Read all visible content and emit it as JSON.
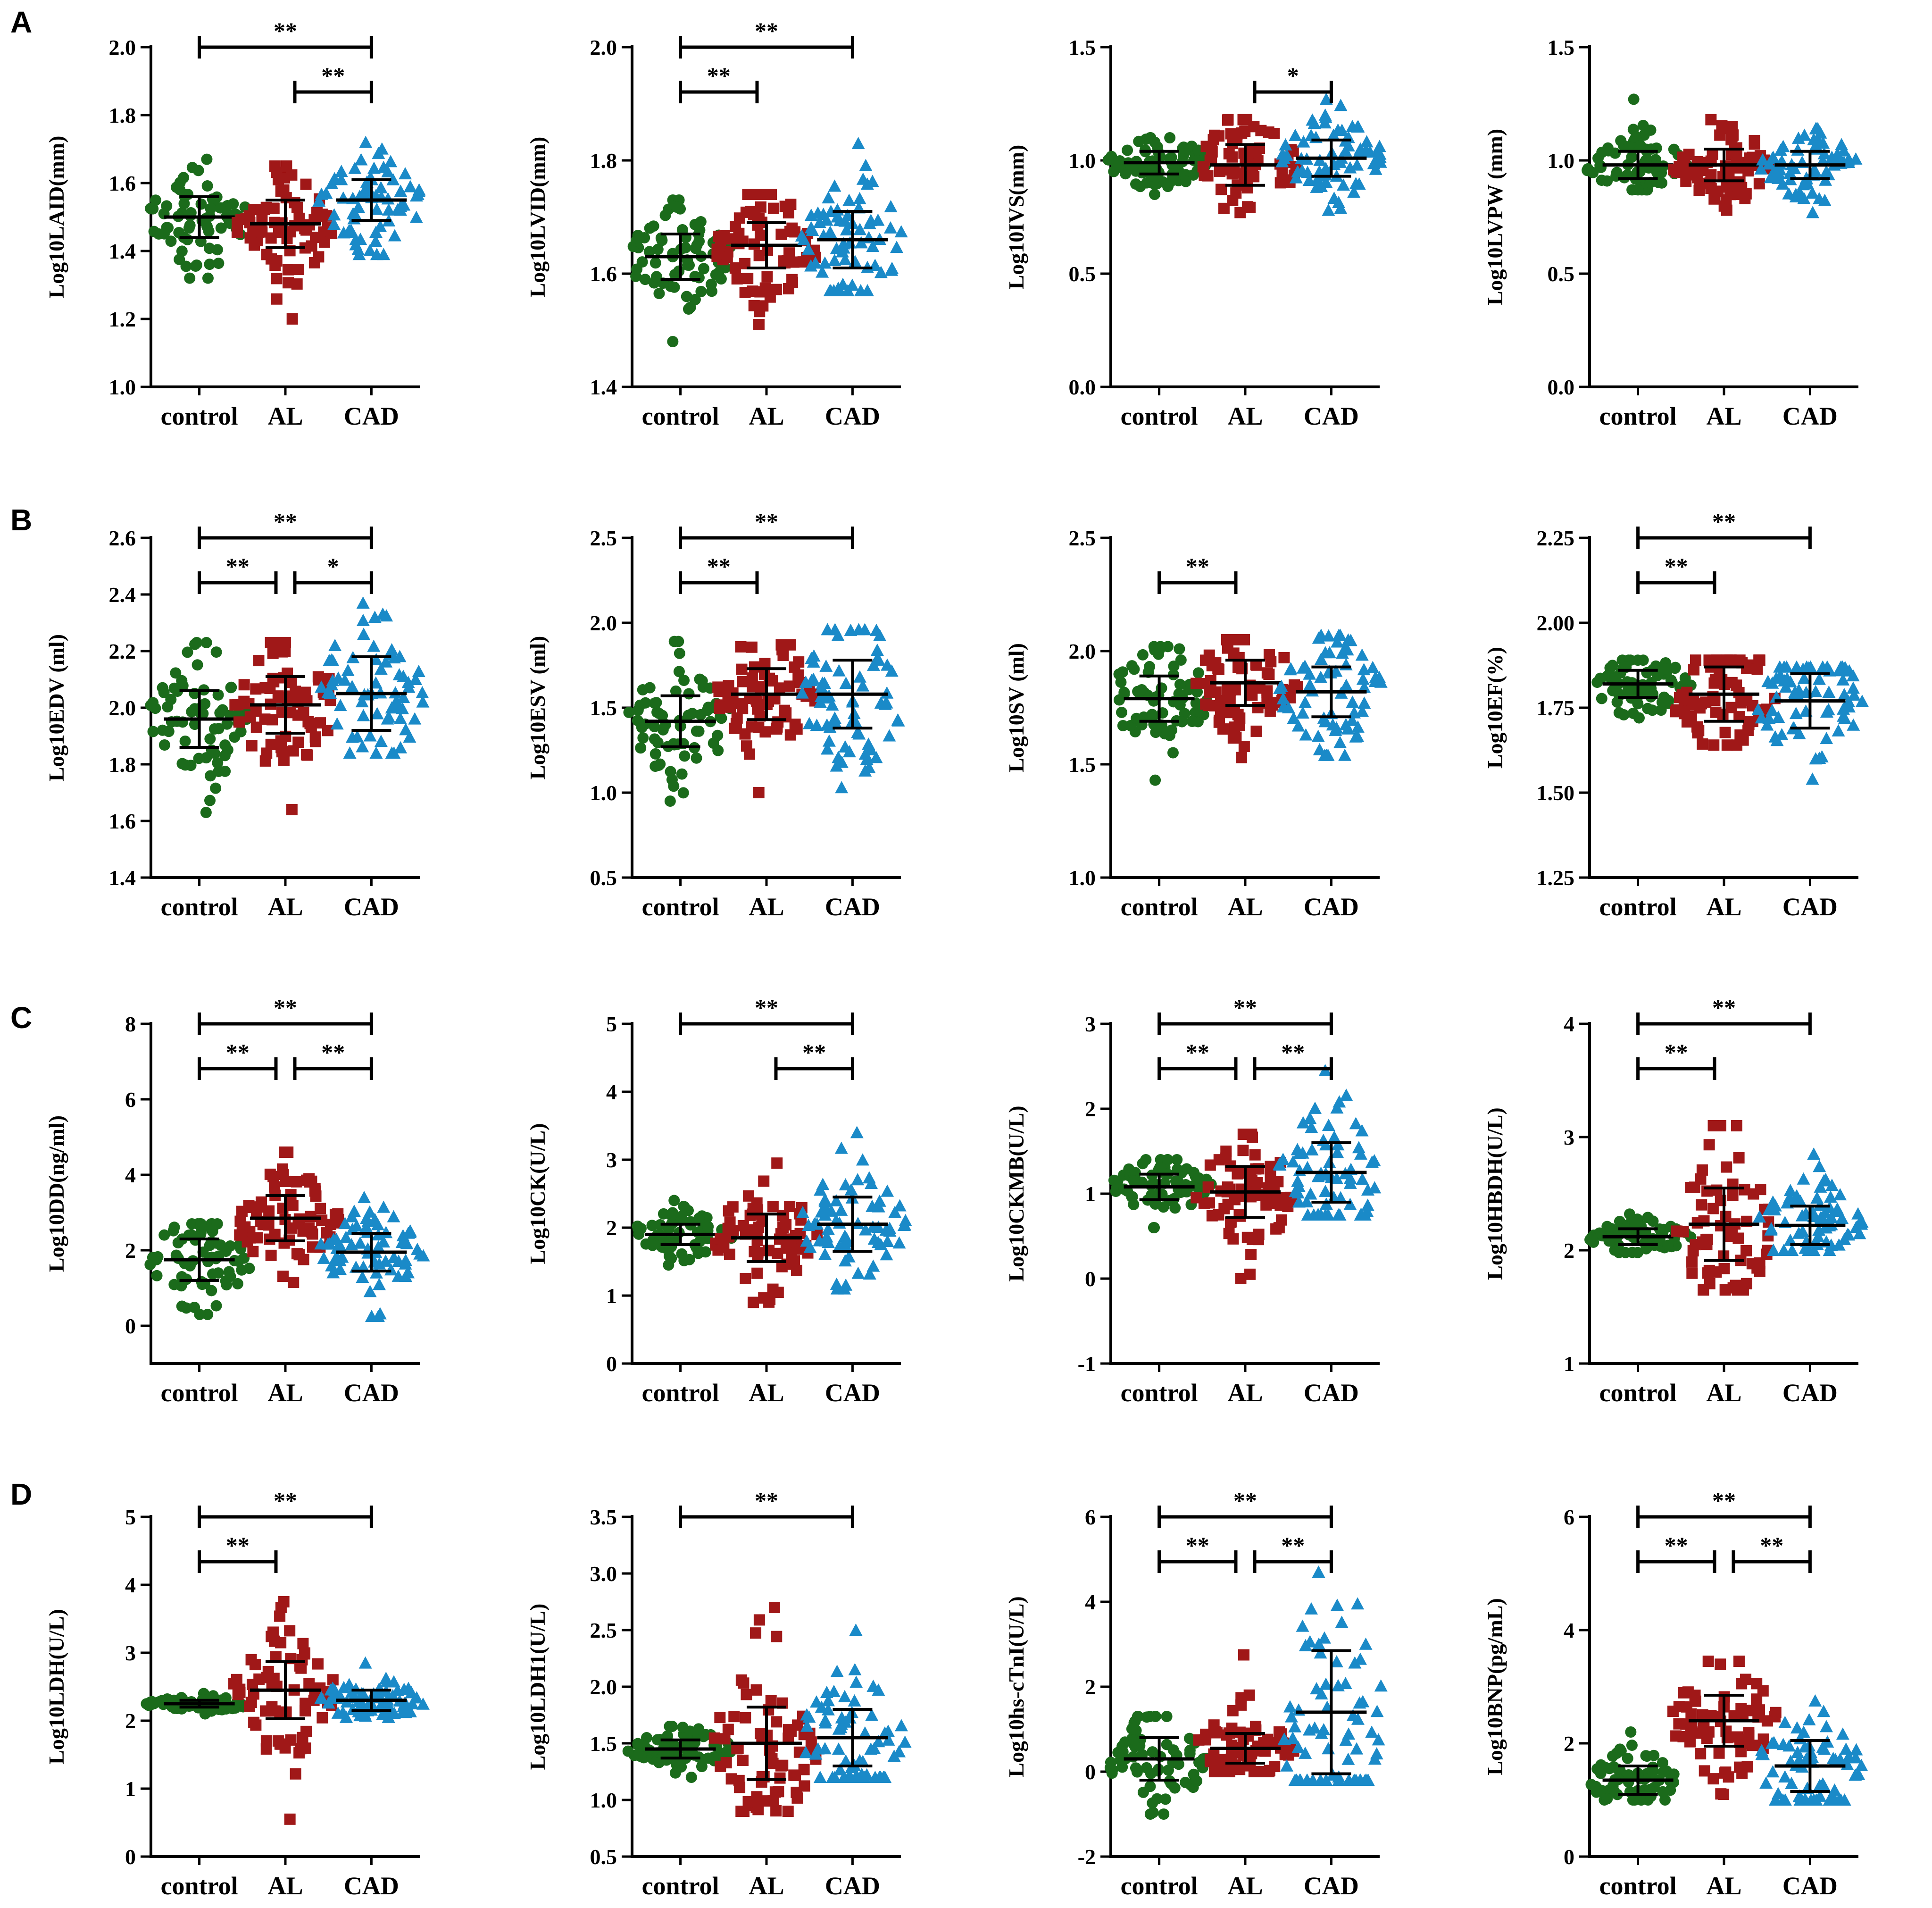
{
  "panels": [
    {
      "id": "A",
      "label": "A"
    },
    {
      "id": "B",
      "label": "B"
    },
    {
      "id": "C",
      "label": "C"
    },
    {
      "id": "D",
      "label": "D"
    }
  ],
  "colors": {
    "control": "#1b6b1b",
    "AL": "#a01818",
    "CAD": "#1a8ac8"
  },
  "groups": [
    "control",
    "AL",
    "CAD"
  ],
  "chart_data": [
    {
      "type": "scatter",
      "panel": "A",
      "ylabel": "Log10LAID(mm)",
      "ylim": [
        1.0,
        2.0
      ],
      "yticks": [
        1.0,
        1.2,
        1.4,
        1.6,
        1.8,
        2.0
      ],
      "tick_format": 1,
      "categories": [
        "control",
        "AL",
        "CAD"
      ],
      "series": [
        {
          "name": "control",
          "mean": 1.5,
          "sd": 0.06,
          "min": 1.32,
          "max": 1.67
        },
        {
          "name": "AL",
          "mean": 1.48,
          "sd": 0.07,
          "min": 1.2,
          "max": 1.65
        },
        {
          "name": "CAD",
          "mean": 1.55,
          "sd": 0.06,
          "min": 1.39,
          "max": 1.72
        }
      ],
      "significance": [
        {
          "from": 0,
          "to": 2,
          "label": "**"
        },
        {
          "from": 1,
          "to": 2,
          "label": "**"
        }
      ]
    },
    {
      "type": "scatter",
      "panel": "A",
      "ylabel": "Log10LVID(mm)",
      "ylim": [
        1.4,
        2.0
      ],
      "yticks": [
        1.4,
        1.6,
        1.8,
        2.0
      ],
      "tick_format": 1,
      "categories": [
        "control",
        "AL",
        "CAD"
      ],
      "series": [
        {
          "name": "control",
          "mean": 1.63,
          "sd": 0.04,
          "min": 1.48,
          "max": 1.73
        },
        {
          "name": "AL",
          "mean": 1.65,
          "sd": 0.04,
          "min": 1.51,
          "max": 1.74
        },
        {
          "name": "CAD",
          "mean": 1.66,
          "sd": 0.05,
          "min": 1.57,
          "max": 1.83
        }
      ],
      "significance": [
        {
          "from": 0,
          "to": 2,
          "label": "**"
        },
        {
          "from": 0,
          "to": 1,
          "label": "**"
        }
      ]
    },
    {
      "type": "scatter",
      "panel": "A",
      "ylabel": "Log10IVS(mm)",
      "ylim": [
        0.0,
        1.5
      ],
      "yticks": [
        0.0,
        0.5,
        1.0,
        1.5
      ],
      "tick_format": 1,
      "categories": [
        "control",
        "AL",
        "CAD"
      ],
      "series": [
        {
          "name": "control",
          "mean": 0.99,
          "sd": 0.05,
          "min": 0.85,
          "max": 1.1
        },
        {
          "name": "AL",
          "mean": 0.98,
          "sd": 0.09,
          "min": 0.77,
          "max": 1.18
        },
        {
          "name": "CAD",
          "mean": 1.01,
          "sd": 0.08,
          "min": 0.78,
          "max": 1.27
        }
      ],
      "significance": [
        {
          "from": 1,
          "to": 2,
          "label": "*"
        }
      ]
    },
    {
      "type": "scatter",
      "panel": "A",
      "ylabel": "Log10LVPW (mm)",
      "ylim": [
        0.0,
        1.5
      ],
      "yticks": [
        0.0,
        0.5,
        1.0,
        1.5
      ],
      "tick_format": 1,
      "categories": [
        "control",
        "AL",
        "CAD"
      ],
      "series": [
        {
          "name": "control",
          "mean": 0.98,
          "sd": 0.06,
          "min": 0.87,
          "max": 1.27
        },
        {
          "name": "AL",
          "mean": 0.98,
          "sd": 0.07,
          "min": 0.78,
          "max": 1.18
        },
        {
          "name": "CAD",
          "mean": 0.98,
          "sd": 0.06,
          "min": 0.77,
          "max": 1.14
        }
      ],
      "significance": []
    },
    {
      "type": "scatter",
      "panel": "B",
      "ylabel": "Log10EDV (ml)",
      "ylim": [
        1.4,
        2.6
      ],
      "yticks": [
        1.4,
        1.6,
        1.8,
        2.0,
        2.2,
        2.4,
        2.6
      ],
      "tick_format": 1,
      "categories": [
        "control",
        "AL",
        "CAD"
      ],
      "series": [
        {
          "name": "control",
          "mean": 1.96,
          "sd": 0.1,
          "min": 1.63,
          "max": 2.23
        },
        {
          "name": "AL",
          "mean": 2.01,
          "sd": 0.1,
          "min": 1.64,
          "max": 2.23
        },
        {
          "name": "CAD",
          "mean": 2.05,
          "sd": 0.13,
          "min": 1.84,
          "max": 2.37
        }
      ],
      "significance": [
        {
          "from": 0,
          "to": 2,
          "label": "**"
        },
        {
          "from": 0,
          "to": 1,
          "label": "**"
        },
        {
          "from": 1,
          "to": 2,
          "label": "*"
        }
      ]
    },
    {
      "type": "scatter",
      "panel": "B",
      "ylabel": "Log10ESV (ml)",
      "ylim": [
        0.5,
        2.5
      ],
      "yticks": [
        0.5,
        1.0,
        1.5,
        2.0,
        2.5
      ],
      "tick_format": 1,
      "categories": [
        "control",
        "AL",
        "CAD"
      ],
      "series": [
        {
          "name": "control",
          "mean": 1.42,
          "sd": 0.15,
          "min": 0.95,
          "max": 1.89
        },
        {
          "name": "AL",
          "mean": 1.58,
          "sd": 0.15,
          "min": 1.0,
          "max": 1.87
        },
        {
          "name": "CAD",
          "mean": 1.58,
          "sd": 0.2,
          "min": 1.03,
          "max": 1.96
        }
      ],
      "significance": [
        {
          "from": 0,
          "to": 2,
          "label": "**"
        },
        {
          "from": 0,
          "to": 1,
          "label": "**"
        }
      ]
    },
    {
      "type": "scatter",
      "panel": "B",
      "ylabel": "Log10SV (ml)",
      "ylim": [
        1.0,
        2.5
      ],
      "yticks": [
        1.0,
        1.5,
        2.0,
        2.5
      ],
      "tick_format": 1,
      "categories": [
        "control",
        "AL",
        "CAD"
      ],
      "series": [
        {
          "name": "control",
          "mean": 1.79,
          "sd": 0.1,
          "min": 1.43,
          "max": 2.02
        },
        {
          "name": "AL",
          "mean": 1.86,
          "sd": 0.1,
          "min": 1.53,
          "max": 2.05
        },
        {
          "name": "CAD",
          "mean": 1.82,
          "sd": 0.11,
          "min": 1.54,
          "max": 2.07
        }
      ],
      "significance": [
        {
          "from": 0,
          "to": 1,
          "label": "**"
        }
      ]
    },
    {
      "type": "scatter",
      "panel": "B",
      "ylabel": "Log10EF(%)",
      "ylim": [
        1.25,
        2.25
      ],
      "yticks": [
        1.25,
        1.5,
        1.75,
        2.0,
        2.25
      ],
      "tick_format": 2,
      "categories": [
        "control",
        "AL",
        "CAD"
      ],
      "series": [
        {
          "name": "control",
          "mean": 1.82,
          "sd": 0.04,
          "min": 1.72,
          "max": 1.89
        },
        {
          "name": "AL",
          "mean": 1.79,
          "sd": 0.08,
          "min": 1.64,
          "max": 1.89
        },
        {
          "name": "CAD",
          "mean": 1.77,
          "sd": 0.08,
          "min": 1.54,
          "max": 1.87
        }
      ],
      "significance": [
        {
          "from": 0,
          "to": 2,
          "label": "**"
        },
        {
          "from": 0,
          "to": 1,
          "label": "**"
        }
      ]
    },
    {
      "type": "scatter",
      "panel": "C",
      "ylabel": "Log10DD(ng/ml)",
      "ylim": [
        -1,
        8
      ],
      "yticks": [
        0,
        2,
        4,
        6,
        8
      ],
      "tick_format": 0,
      "categories": [
        "control",
        "AL",
        "CAD"
      ],
      "series": [
        {
          "name": "control",
          "mean": 1.75,
          "sd": 0.55,
          "min": 0.3,
          "max": 2.7
        },
        {
          "name": "AL",
          "mean": 2.85,
          "sd": 0.6,
          "min": 1.15,
          "max": 4.6
        },
        {
          "name": "CAD",
          "mean": 1.95,
          "sd": 0.5,
          "min": 0.25,
          "max": 3.4
        }
      ],
      "significance": [
        {
          "from": 0,
          "to": 2,
          "label": "**"
        },
        {
          "from": 0,
          "to": 1,
          "label": "**"
        },
        {
          "from": 1,
          "to": 2,
          "label": "**"
        }
      ]
    },
    {
      "type": "scatter",
      "panel": "C",
      "ylabel": "Log10CK(U/L)",
      "ylim": [
        0,
        5
      ],
      "yticks": [
        0,
        1,
        2,
        3,
        4,
        5
      ],
      "tick_format": 0,
      "categories": [
        "control",
        "AL",
        "CAD"
      ],
      "series": [
        {
          "name": "control",
          "mean": 1.9,
          "sd": 0.15,
          "min": 1.45,
          "max": 2.4
        },
        {
          "name": "AL",
          "mean": 1.85,
          "sd": 0.35,
          "min": 0.9,
          "max": 2.95
        },
        {
          "name": "CAD",
          "mean": 2.05,
          "sd": 0.4,
          "min": 1.1,
          "max": 3.4
        }
      ],
      "significance": [
        {
          "from": 0,
          "to": 2,
          "label": "**"
        },
        {
          "from": 1,
          "to": 2,
          "label": "**"
        }
      ]
    },
    {
      "type": "scatter",
      "panel": "C",
      "ylabel": "Log10CKMB(U/L)",
      "ylim": [
        -1,
        3
      ],
      "yticks": [
        -1,
        0,
        1,
        2,
        3
      ],
      "tick_format": 0,
      "categories": [
        "control",
        "AL",
        "CAD"
      ],
      "series": [
        {
          "name": "control",
          "mean": 1.08,
          "sd": 0.15,
          "min": 0.6,
          "max": 1.4
        },
        {
          "name": "AL",
          "mean": 1.02,
          "sd": 0.3,
          "min": 0.0,
          "max": 1.7
        },
        {
          "name": "CAD",
          "mean": 1.25,
          "sd": 0.35,
          "min": 0.75,
          "max": 2.45
        }
      ],
      "significance": [
        {
          "from": 0,
          "to": 2,
          "label": "**"
        },
        {
          "from": 0,
          "to": 1,
          "label": "**"
        },
        {
          "from": 1,
          "to": 2,
          "label": "**"
        }
      ]
    },
    {
      "type": "scatter",
      "panel": "C",
      "ylabel": "Log10HBDH(U/L)",
      "ylim": [
        1,
        4
      ],
      "yticks": [
        1,
        2,
        3,
        4
      ],
      "tick_format": 0,
      "categories": [
        "control",
        "AL",
        "CAD"
      ],
      "series": [
        {
          "name": "control",
          "mean": 2.12,
          "sd": 0.07,
          "min": 1.98,
          "max": 2.32
        },
        {
          "name": "AL",
          "mean": 2.23,
          "sd": 0.32,
          "min": 1.65,
          "max": 3.1
        },
        {
          "name": "CAD",
          "mean": 2.22,
          "sd": 0.17,
          "min": 2.0,
          "max": 2.85
        }
      ],
      "significance": [
        {
          "from": 0,
          "to": 2,
          "label": "**"
        },
        {
          "from": 0,
          "to": 1,
          "label": "**"
        }
      ]
    },
    {
      "type": "scatter",
      "panel": "D",
      "ylabel": "Log10LDH(U/L)",
      "ylim": [
        0,
        5
      ],
      "yticks": [
        0,
        1,
        2,
        3,
        4,
        5
      ],
      "tick_format": 0,
      "categories": [
        "control",
        "AL",
        "CAD"
      ],
      "series": [
        {
          "name": "control",
          "mean": 2.25,
          "sd": 0.05,
          "min": 2.1,
          "max": 2.4
        },
        {
          "name": "AL",
          "mean": 2.45,
          "sd": 0.42,
          "min": 0.55,
          "max": 3.75
        },
        {
          "name": "CAD",
          "mean": 2.3,
          "sd": 0.15,
          "min": 2.05,
          "max": 2.85
        }
      ],
      "significance": [
        {
          "from": 0,
          "to": 2,
          "label": "**"
        },
        {
          "from": 0,
          "to": 1,
          "label": "**"
        }
      ]
    },
    {
      "type": "scatter",
      "panel": "D",
      "ylabel": "Log10LDH1(U/L)",
      "ylim": [
        0.5,
        3.5
      ],
      "yticks": [
        0.5,
        1.0,
        1.5,
        2.0,
        2.5,
        3.0,
        3.5
      ],
      "tick_format": 1,
      "categories": [
        "control",
        "AL",
        "CAD"
      ],
      "series": [
        {
          "name": "control",
          "mean": 1.45,
          "sd": 0.08,
          "min": 1.2,
          "max": 1.65
        },
        {
          "name": "AL",
          "mean": 1.5,
          "sd": 0.32,
          "min": 0.9,
          "max": 2.7
        },
        {
          "name": "CAD",
          "mean": 1.55,
          "sd": 0.25,
          "min": 1.2,
          "max": 2.5
        }
      ],
      "significance": [
        {
          "from": 0,
          "to": 2,
          "label": "**"
        }
      ]
    },
    {
      "type": "scatter",
      "panel": "D",
      "ylabel": "Log10hs-cTnI(U/L)",
      "ylim": [
        -2,
        6
      ],
      "yticks": [
        -2,
        0,
        2,
        4,
        6
      ],
      "tick_format": 0,
      "categories": [
        "control",
        "AL",
        "CAD"
      ],
      "series": [
        {
          "name": "control",
          "mean": 0.3,
          "sd": 0.5,
          "min": -1.0,
          "max": 1.3
        },
        {
          "name": "AL",
          "mean": 0.55,
          "sd": 0.35,
          "min": 0.0,
          "max": 2.75
        },
        {
          "name": "CAD",
          "mean": 1.4,
          "sd": 1.45,
          "min": -0.2,
          "max": 4.7
        }
      ],
      "significance": [
        {
          "from": 0,
          "to": 2,
          "label": "**"
        },
        {
          "from": 0,
          "to": 1,
          "label": "**"
        },
        {
          "from": 1,
          "to": 2,
          "label": "**"
        }
      ]
    },
    {
      "type": "scatter",
      "panel": "D",
      "ylabel": "Log10BNP(pg/mL)",
      "ylim": [
        0,
        6
      ],
      "yticks": [
        0,
        2,
        4,
        6
      ],
      "tick_format": 0,
      "categories": [
        "control",
        "AL",
        "CAD"
      ],
      "series": [
        {
          "name": "control",
          "mean": 1.35,
          "sd": 0.25,
          "min": 1.0,
          "max": 2.2
        },
        {
          "name": "AL",
          "mean": 2.4,
          "sd": 0.45,
          "min": 1.1,
          "max": 3.45
        },
        {
          "name": "CAD",
          "mean": 1.6,
          "sd": 0.45,
          "min": 1.0,
          "max": 2.75
        }
      ],
      "significance": [
        {
          "from": 0,
          "to": 2,
          "label": "**"
        },
        {
          "from": 0,
          "to": 1,
          "label": "**"
        },
        {
          "from": 1,
          "to": 2,
          "label": "**"
        }
      ]
    }
  ]
}
